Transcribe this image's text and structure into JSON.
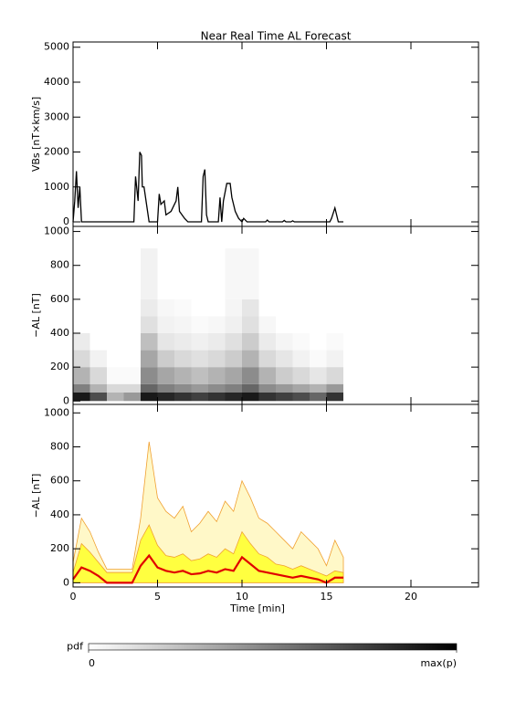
{
  "chart_data": [
    {
      "type": "line",
      "title": "Near Real Time AL Forecast",
      "ylabel": "VBs [nT×km/s]",
      "color": "#000000",
      "x": [
        0,
        0.1,
        0.2,
        0.3,
        0.4,
        0.5,
        0.6,
        3.6,
        3.7,
        3.85,
        3.95,
        4.05,
        4.1,
        4.2,
        4.35,
        4.5,
        5.0,
        5.1,
        5.2,
        5.4,
        5.5,
        5.8,
        6.1,
        6.2,
        6.3,
        6.6,
        6.8,
        7.6,
        7.7,
        7.8,
        7.9,
        8.0,
        8.6,
        8.7,
        8.8,
        8.9,
        9.1,
        9.3,
        9.4,
        9.6,
        9.8,
        10.0,
        10.1,
        10.3,
        11.4,
        11.5,
        11.6,
        12.4,
        12.5,
        12.6,
        12.9,
        13.0,
        13.1,
        15.2,
        15.3,
        15.5,
        15.6,
        15.7,
        16.0
      ],
      "values": [
        0,
        600,
        1450,
        400,
        1000,
        0,
        0,
        0,
        1300,
        600,
        2000,
        1900,
        1000,
        1000,
        500,
        0,
        0,
        800,
        500,
        600,
        200,
        300,
        600,
        1000,
        300,
        100,
        0,
        0,
        1300,
        1500,
        200,
        0,
        0,
        700,
        0,
        600,
        1100,
        1100,
        700,
        300,
        100,
        0,
        100,
        0,
        0,
        50,
        0,
        0,
        40,
        0,
        0,
        30,
        0,
        0,
        100,
        400,
        200,
        0,
        0
      ],
      "xlim": [
        0,
        24
      ],
      "xticks": [
        0,
        5,
        10,
        15,
        20
      ],
      "ylim": [
        -130,
        5150
      ],
      "yticks": [
        0,
        1000,
        2000,
        3000,
        4000,
        5000
      ]
    },
    {
      "type": "heatmap",
      "ylabel": "−AL [nT]",
      "x_edges": [
        0,
        1,
        2,
        3,
        4,
        5,
        6,
        7,
        8,
        9,
        10,
        11,
        12,
        13,
        14,
        15,
        16
      ],
      "y_edges": [
        0,
        50,
        100,
        200,
        300,
        400,
        500,
        600,
        900
      ],
      "z": [
        [
          0.9,
          0.7,
          0.3,
          0.4,
          0.9,
          0.85,
          0.8,
          0.75,
          0.8,
          0.85,
          0.9,
          0.8,
          0.75,
          0.7,
          0.6,
          0.8
        ],
        [
          0.5,
          0.3,
          0.15,
          0.15,
          0.6,
          0.5,
          0.45,
          0.4,
          0.45,
          0.5,
          0.6,
          0.45,
          0.4,
          0.35,
          0.3,
          0.4
        ],
        [
          0.3,
          0.15,
          0.02,
          0.02,
          0.45,
          0.35,
          0.3,
          0.25,
          0.3,
          0.35,
          0.45,
          0.3,
          0.2,
          0.15,
          0.1,
          0.15
        ],
        [
          0.15,
          0.05,
          0,
          0,
          0.35,
          0.2,
          0.15,
          0.12,
          0.15,
          0.2,
          0.3,
          0.15,
          0.1,
          0.05,
          0.02,
          0.05
        ],
        [
          0.08,
          0,
          0,
          0,
          0.25,
          0.1,
          0.08,
          0.06,
          0.08,
          0.12,
          0.2,
          0.08,
          0.04,
          0.02,
          0,
          0.02
        ],
        [
          0,
          0,
          0,
          0,
          0.12,
          0.05,
          0.04,
          0.02,
          0.03,
          0.06,
          0.12,
          0.03,
          0,
          0,
          0,
          0
        ],
        [
          0,
          0,
          0,
          0,
          0.08,
          0.03,
          0.02,
          0,
          0,
          0.04,
          0.1,
          0,
          0,
          0,
          0,
          0
        ],
        [
          0,
          0,
          0,
          0,
          0.05,
          0,
          0,
          0,
          0,
          0.03,
          0.03,
          0,
          0,
          0,
          0,
          0
        ]
      ],
      "clim": [
        0,
        1
      ],
      "colorbar": {
        "label": "pdf",
        "ticks": [
          0,
          {
            "value": 1,
            "label": "max(p)"
          }
        ]
      },
      "xlim": [
        0,
        24
      ],
      "xticks": [
        0,
        5,
        10,
        15,
        20
      ],
      "ylim": [
        -20,
        1030
      ],
      "yticks": [
        0,
        200,
        400,
        600,
        800,
        1000
      ]
    },
    {
      "type": "quantile_band",
      "ylabel": "−AL [nT]",
      "xlabel": "Time [min]",
      "x": [
        0,
        0.5,
        1,
        1.5,
        2,
        2.5,
        3,
        3.5,
        4,
        4.5,
        5,
        5.5,
        6,
        6.5,
        7,
        7.5,
        8,
        8.5,
        9,
        9.5,
        10,
        10.5,
        11,
        11.5,
        12,
        12.5,
        13,
        13.5,
        14,
        14.5,
        15,
        15.5,
        16
      ],
      "outer_upper": {
        "color": "#f0a030",
        "fill": "#fff8c8",
        "values": [
          120,
          380,
          300,
          180,
          80,
          80,
          80,
          80,
          380,
          830,
          500,
          420,
          380,
          450,
          300,
          350,
          420,
          360,
          480,
          420,
          600,
          500,
          380,
          350,
          300,
          250,
          200,
          300,
          250,
          200,
          100,
          250,
          150
        ]
      },
      "inner_upper": {
        "color": "#ffff40",
        "values": [
          60,
          230,
          180,
          120,
          60,
          60,
          60,
          60,
          250,
          340,
          220,
          160,
          150,
          170,
          130,
          140,
          170,
          150,
          200,
          170,
          300,
          230,
          170,
          150,
          110,
          100,
          80,
          100,
          80,
          60,
          40,
          70,
          60
        ]
      },
      "median": {
        "color": "#e00000",
        "values": [
          20,
          90,
          70,
          40,
          0,
          0,
          0,
          0,
          100,
          160,
          90,
          70,
          60,
          70,
          50,
          55,
          70,
          60,
          80,
          70,
          150,
          110,
          70,
          60,
          50,
          40,
          30,
          40,
          30,
          20,
          0,
          30,
          30
        ]
      },
      "xlim": [
        0,
        24
      ],
      "xticks": [
        0,
        5,
        10,
        15,
        20
      ],
      "ylim": [
        -25,
        1050
      ],
      "yticks": [
        0,
        200,
        400,
        600,
        800,
        1000
      ]
    }
  ]
}
